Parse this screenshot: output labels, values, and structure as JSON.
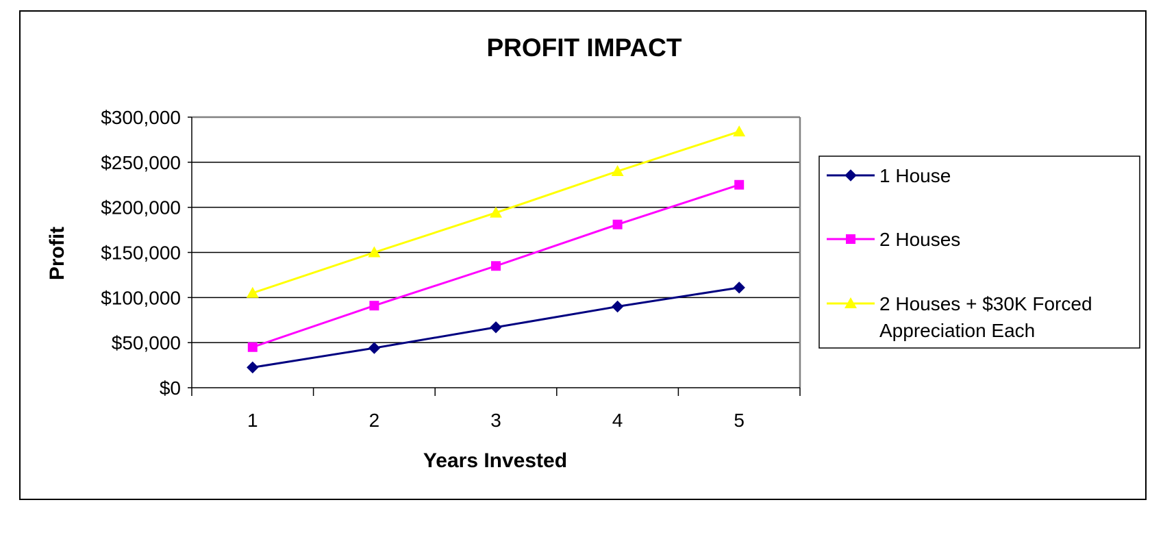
{
  "chart_data": {
    "type": "line",
    "title": "PROFIT IMPACT",
    "xlabel": "Years Invested",
    "ylabel": "Profit",
    "categories": [
      "1",
      "2",
      "3",
      "4",
      "5"
    ],
    "ylim": [
      0,
      300000
    ],
    "yticks": [
      0,
      50000,
      100000,
      150000,
      200000,
      250000,
      300000
    ],
    "ytick_labels": [
      "$0",
      "$50,000",
      "$100,000",
      "$150,000",
      "$200,000",
      "$250,000",
      "$300,000"
    ],
    "grid": true,
    "legend_position": "right",
    "series": [
      {
        "name": "1 House",
        "legend_lines": [
          "1 House"
        ],
        "color": "#000080",
        "marker": "diamond",
        "values": [
          22500,
          44000,
          67000,
          90000,
          111000
        ]
      },
      {
        "name": "2 Houses",
        "legend_lines": [
          "2 Houses"
        ],
        "color": "#ff00ff",
        "marker": "square",
        "values": [
          45000,
          91000,
          135000,
          181000,
          225000
        ]
      },
      {
        "name": "2 Houses + $30K Forced Appreciation Each",
        "legend_lines": [
          "2 Houses + $30K Forced",
          "Appreciation Each"
        ],
        "color": "#ffff00",
        "marker": "triangle",
        "values": [
          105000,
          150000,
          194000,
          240000,
          284000
        ]
      }
    ]
  }
}
